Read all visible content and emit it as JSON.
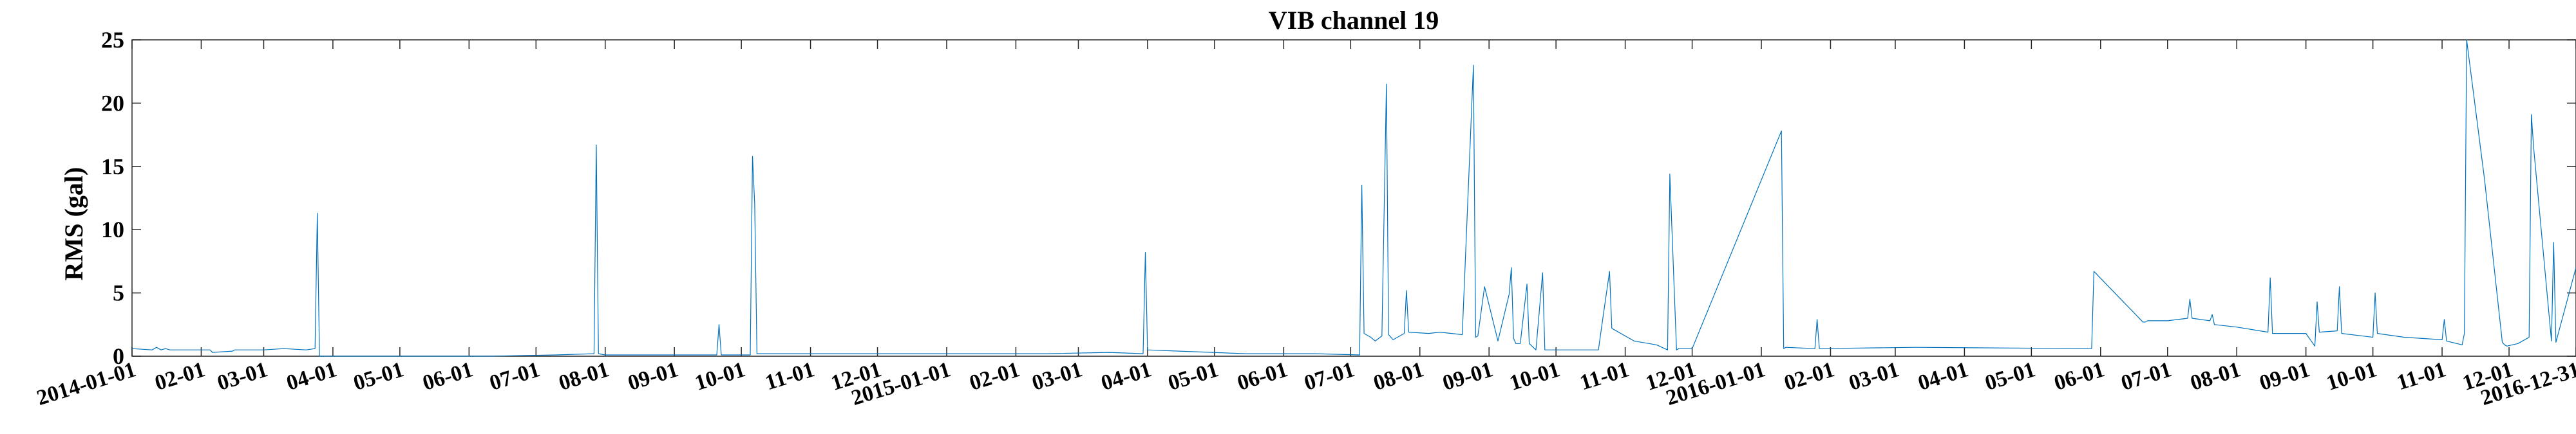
{
  "chart_data": {
    "type": "line",
    "title": "VIB channel 19",
    "xlabel": "",
    "ylabel": "RMS (gal)",
    "xlim": [
      "2014-01-01",
      "2016-12-31"
    ],
    "ylim": [
      0,
      25
    ],
    "yticks": [
      0,
      5,
      10,
      15,
      20,
      25
    ],
    "xticks": [
      "2014-01-01",
      "2014-02-01",
      "2014-03-01",
      "2014-04-01",
      "2014-05-01",
      "2014-06-01",
      "2014-07-01",
      "2014-08-01",
      "2014-09-01",
      "2014-10-01",
      "2014-11-01",
      "2014-12-01",
      "2015-01-01",
      "2015-02-01",
      "2015-03-01",
      "2015-04-01",
      "2015-05-01",
      "2015-06-01",
      "2015-07-01",
      "2015-08-01",
      "2015-09-01",
      "2015-10-01",
      "2015-11-01",
      "2015-12-01",
      "2016-01-01",
      "2016-02-01",
      "2016-03-01",
      "2016-04-01",
      "2016-05-01",
      "2016-06-01",
      "2016-07-01",
      "2016-08-01",
      "2016-09-01",
      "2016-10-01",
      "2016-11-01",
      "2016-12-01",
      "2016-12-31"
    ],
    "xtick_labels": [
      "2014-01-01",
      "02-01",
      "03-01",
      "04-01",
      "05-01",
      "06-01",
      "07-01",
      "08-01",
      "09-01",
      "10-01",
      "11-01",
      "12-01",
      "2015-01-01",
      "02-01",
      "03-01",
      "04-01",
      "05-01",
      "06-01",
      "07-01",
      "08-01",
      "09-01",
      "10-01",
      "11-01",
      "12-01",
      "2016-01-01",
      "02-01",
      "03-01",
      "04-01",
      "05-01",
      "06-01",
      "07-01",
      "08-01",
      "09-01",
      "10-01",
      "11-01",
      "12-01",
      "2016-12-31"
    ],
    "grid": false,
    "color": "#0072BD",
    "series": [
      {
        "x": [
          "2014-01-01",
          "2014-01-10",
          "2014-01-12",
          "2014-01-14",
          "2014-01-16",
          "2014-01-18",
          "2014-02-05",
          "2014-02-06",
          "2014-02-15",
          "2014-02-16",
          "2014-03-01",
          "2014-03-10",
          "2014-03-20",
          "2014-03-24",
          "2014-03-25",
          "2014-03-26",
          "2014-04-10",
          "2014-05-10",
          "2014-06-10",
          "2014-07-10",
          "2014-07-27",
          "2014-07-28",
          "2014-07-29",
          "2014-08-01",
          "2014-08-15",
          "2014-09-20",
          "2014-09-21",
          "2014-09-22",
          "2014-10-05",
          "2014-10-06",
          "2014-10-07",
          "2014-10-08",
          "2014-11-15",
          "2014-12-15",
          "2015-01-15",
          "2015-02-15",
          "2015-03-15",
          "2015-03-30",
          "2015-03-31",
          "2015-04-01",
          "2015-04-15",
          "2015-05-15",
          "2015-06-15",
          "2015-07-05",
          "2015-07-06",
          "2015-07-07",
          "2015-07-10",
          "2015-07-12",
          "2015-07-15",
          "2015-07-17",
          "2015-07-18",
          "2015-07-20",
          "2015-07-25",
          "2015-07-26",
          "2015-07-27",
          "2015-08-05",
          "2015-08-10",
          "2015-08-20",
          "2015-08-25",
          "2015-08-26",
          "2015-08-27",
          "2015-08-30",
          "2015-09-05",
          "2015-09-10",
          "2015-09-11",
          "2015-09-12",
          "2015-09-13",
          "2015-09-15",
          "2015-09-18",
          "2015-09-19",
          "2015-09-22",
          "2015-09-25",
          "2015-09-26",
          "2015-10-20",
          "2015-10-22",
          "2015-10-25",
          "2015-10-26",
          "2015-11-05",
          "2015-11-15",
          "2015-11-20",
          "2015-11-21",
          "2015-11-24",
          "2015-11-25",
          "2015-11-26",
          "2015-12-01",
          "2016-01-10",
          "2016-01-11",
          "2016-01-12",
          "2016-01-25",
          "2016-01-26",
          "2016-01-27",
          "2016-03-10",
          "2016-05-27",
          "2016-05-28",
          "2016-05-29",
          "2016-06-20",
          "2016-06-21",
          "2016-06-22",
          "2016-07-01",
          "2016-07-10",
          "2016-07-11",
          "2016-07-12",
          "2016-07-20",
          "2016-07-21",
          "2016-07-22",
          "2016-08-01",
          "2016-08-15",
          "2016-08-16",
          "2016-08-17",
          "2016-08-25",
          "2016-09-01",
          "2016-09-05",
          "2016-09-06",
          "2016-09-07",
          "2016-09-15",
          "2016-09-16",
          "2016-09-17",
          "2016-10-01",
          "2016-10-02",
          "2016-10-03",
          "2016-10-15",
          "2016-11-01",
          "2016-11-02",
          "2016-11-03",
          "2016-11-10",
          "2016-11-11",
          "2016-11-12",
          "2016-11-20",
          "2016-11-28",
          "2016-11-29",
          "2016-11-30",
          "2016-12-05",
          "2016-12-10",
          "2016-12-11",
          "2016-12-12",
          "2016-12-20",
          "2016-12-21",
          "2016-12-22",
          "2016-12-31"
        ],
        "y": [
          0.6,
          0.5,
          0.7,
          0.5,
          0.6,
          0.5,
          0.5,
          0.3,
          0.4,
          0.5,
          0.5,
          0.6,
          0.5,
          0.6,
          11.3,
          0.0,
          0.0,
          0.0,
          0.0,
          0.1,
          0.2,
          16.7,
          0.2,
          0.1,
          0.1,
          0.1,
          2.5,
          0.1,
          0.1,
          15.8,
          12.0,
          0.2,
          0.2,
          0.2,
          0.2,
          0.2,
          0.3,
          0.2,
          8.2,
          0.5,
          0.4,
          0.2,
          0.2,
          0.1,
          13.5,
          1.8,
          1.5,
          1.2,
          1.6,
          21.5,
          1.7,
          1.3,
          1.8,
          5.2,
          1.9,
          1.8,
          1.9,
          1.7,
          23.0,
          1.5,
          1.6,
          5.5,
          1.2,
          4.9,
          7.0,
          1.4,
          1.0,
          1.0,
          5.7,
          1.0,
          0.5,
          6.6,
          0.5,
          0.5,
          3.0,
          6.7,
          2.2,
          1.2,
          0.9,
          0.5,
          14.4,
          0.5,
          0.6,
          0.6,
          0.6,
          17.8,
          0.6,
          0.7,
          0.6,
          2.9,
          0.6,
          0.7,
          0.6,
          0.6,
          6.7,
          2.7,
          2.7,
          2.8,
          2.8,
          3.0,
          4.5,
          3.0,
          2.8,
          3.3,
          2.5,
          2.3,
          1.9,
          6.2,
          1.8,
          1.8,
          1.8,
          0.8,
          4.3,
          1.9,
          2.0,
          5.5,
          1.8,
          1.5,
          5.0,
          1.8,
          1.5,
          1.3,
          2.9,
          1.2,
          0.9,
          1.8,
          25.0,
          14.0,
          1.1,
          0.9,
          0.8,
          1.0,
          1.5,
          19.1,
          16.5,
          1.2,
          9.0,
          1.1,
          7.0
        ]
      }
    ]
  }
}
